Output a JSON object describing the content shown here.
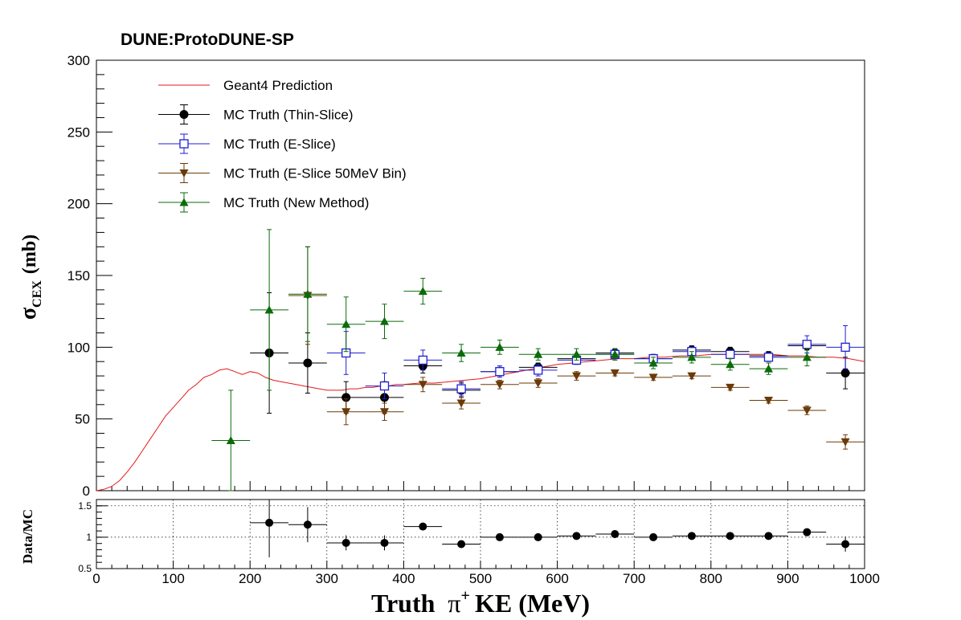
{
  "chart_data": [
    {
      "type": "line",
      "title": "DUNE:ProtoDUNE-SP",
      "xlim": [
        0,
        1000
      ],
      "ylim": [
        0,
        300
      ],
      "ylabel_main": "σ",
      "ylabel_sub": "CEX",
      "ylabel_unit": "(mb)",
      "yticks": [
        "0",
        "50",
        "100",
        "150",
        "200",
        "250",
        "300"
      ],
      "legend": [
        {
          "label": "Geant4 Prediction",
          "series": "geant4",
          "color": "#e41a1c"
        },
        {
          "label": "MC Truth (Thin-Slice)",
          "series": "thin",
          "color": "#000000"
        },
        {
          "label": "MC Truth (E-Slice)",
          "series": "eslice",
          "color": "#1f1fd2"
        },
        {
          "label": "MC Truth (E-Slice 50MeV Bin)",
          "series": "eslice50",
          "color": "#6b3a07"
        },
        {
          "label": "MC Truth (New Method)",
          "series": "newm",
          "color": "#0a6b0a"
        }
      ],
      "series": [
        {
          "key": "geant4",
          "color": "#e41a1c",
          "style": "line",
          "x": [
            0,
            10,
            20,
            30,
            40,
            50,
            60,
            70,
            80,
            90,
            100,
            110,
            120,
            130,
            140,
            150,
            160,
            170,
            180,
            190,
            200,
            210,
            220,
            230,
            240,
            250,
            260,
            270,
            280,
            290,
            300,
            310,
            320,
            330,
            340,
            350,
            360,
            370,
            380,
            390,
            400,
            420,
            440,
            460,
            480,
            500,
            520,
            540,
            560,
            580,
            600,
            620,
            640,
            660,
            680,
            700,
            720,
            740,
            760,
            780,
            800,
            820,
            840,
            860,
            880,
            900,
            920,
            940,
            960,
            980,
            1000
          ],
          "y": [
            0,
            1,
            3,
            7,
            13,
            20,
            28,
            36,
            44,
            52,
            58,
            64,
            70,
            74,
            79,
            81,
            84,
            85,
            83,
            81,
            83,
            82,
            79,
            77,
            76,
            75,
            74,
            73,
            72,
            71,
            70,
            70,
            70,
            71,
            71,
            72,
            72,
            73,
            73,
            74,
            74,
            75,
            75,
            76,
            77,
            78,
            80,
            82,
            84,
            86,
            88,
            89,
            90,
            91,
            92,
            92,
            93,
            93,
            94,
            94,
            95,
            95,
            95,
            95,
            95,
            94,
            94,
            93,
            93,
            92,
            90
          ]
        },
        {
          "key": "thin",
          "color": "#000000",
          "style": "marker",
          "marker": "circle",
          "x": [
            225,
            275,
            325,
            375,
            425,
            475,
            525,
            575,
            625,
            675,
            725,
            775,
            825,
            875,
            925,
            975
          ],
          "y": [
            96,
            89,
            65,
            65,
            87,
            70,
            83,
            86,
            92,
            96,
            92,
            98,
            97,
            94,
            101,
            82
          ],
          "err": [
            42,
            21,
            11,
            11,
            5,
            5,
            3,
            3,
            3,
            3,
            3,
            3,
            3,
            3,
            3,
            11
          ]
        },
        {
          "key": "eslice",
          "color": "#1f1fd2",
          "style": "marker",
          "marker": "open-square",
          "x": [
            325,
            375,
            425,
            475,
            525,
            575,
            625,
            675,
            725,
            775,
            825,
            875,
            925,
            975
          ],
          "y": [
            96,
            73,
            91,
            71,
            83,
            84,
            91,
            95,
            92,
            97,
            95,
            93,
            102,
            100
          ],
          "err": [
            15,
            9,
            7,
            5,
            4,
            4,
            3,
            3,
            3,
            3,
            3,
            3,
            6,
            15
          ]
        },
        {
          "key": "eslice50",
          "color": "#6b3a07",
          "style": "marker",
          "marker": "triangle-down",
          "x": [
            275,
            325,
            375,
            425,
            475,
            525,
            575,
            625,
            675,
            725,
            775,
            825,
            875,
            925,
            975
          ],
          "y": [
            136,
            55,
            55,
            74,
            61,
            74,
            75,
            80,
            82,
            79,
            80,
            72,
            63,
            56,
            34
          ],
          "err": [
            34,
            9,
            6,
            5,
            4,
            3,
            3,
            3,
            2,
            2,
            2,
            2,
            2,
            3,
            5
          ]
        },
        {
          "key": "newm",
          "color": "#0a6b0a",
          "style": "marker",
          "marker": "triangle-up",
          "x": [
            175,
            225,
            275,
            325,
            375,
            425,
            475,
            525,
            575,
            625,
            675,
            725,
            775,
            825,
            875,
            925
          ],
          "y": [
            35,
            126,
            137,
            116,
            118,
            139,
            96,
            100,
            95,
            95,
            95,
            89,
            93,
            88,
            85,
            93
          ],
          "err": [
            35,
            56,
            33,
            19,
            12,
            9,
            6,
            5,
            4,
            4,
            4,
            4,
            4,
            4,
            4,
            6
          ]
        }
      ]
    },
    {
      "type": "scatter",
      "xlim": [
        0,
        1000
      ],
      "ylim": [
        0.5,
        1.6
      ],
      "ylabel": "Data/MC",
      "xlabel_prefix": "Truth",
      "xlabel_symbol": "π",
      "xlabel_sup": "+",
      "xlabel_unit": "KE (MeV)",
      "yticks": [
        "0.5",
        "1",
        "1.5"
      ],
      "xticks": [
        "0",
        "100",
        "200",
        "300",
        "400",
        "500",
        "600",
        "700",
        "800",
        "900",
        "1000"
      ],
      "series": [
        {
          "key": "ratio",
          "color": "#000000",
          "x": [
            225,
            275,
            325,
            375,
            425,
            475,
            525,
            575,
            625,
            675,
            725,
            775,
            825,
            875,
            925,
            975
          ],
          "y": [
            1.23,
            1.2,
            0.91,
            0.91,
            1.17,
            0.89,
            1.0,
            1.0,
            1.02,
            1.05,
            1.0,
            1.02,
            1.02,
            1.02,
            1.08,
            0.89
          ],
          "err": [
            0.55,
            0.28,
            0.12,
            0.12,
            0.05,
            0.04,
            0.03,
            0.03,
            0.03,
            0.03,
            0.03,
            0.03,
            0.03,
            0.03,
            0.03,
            0.12
          ]
        }
      ]
    }
  ]
}
